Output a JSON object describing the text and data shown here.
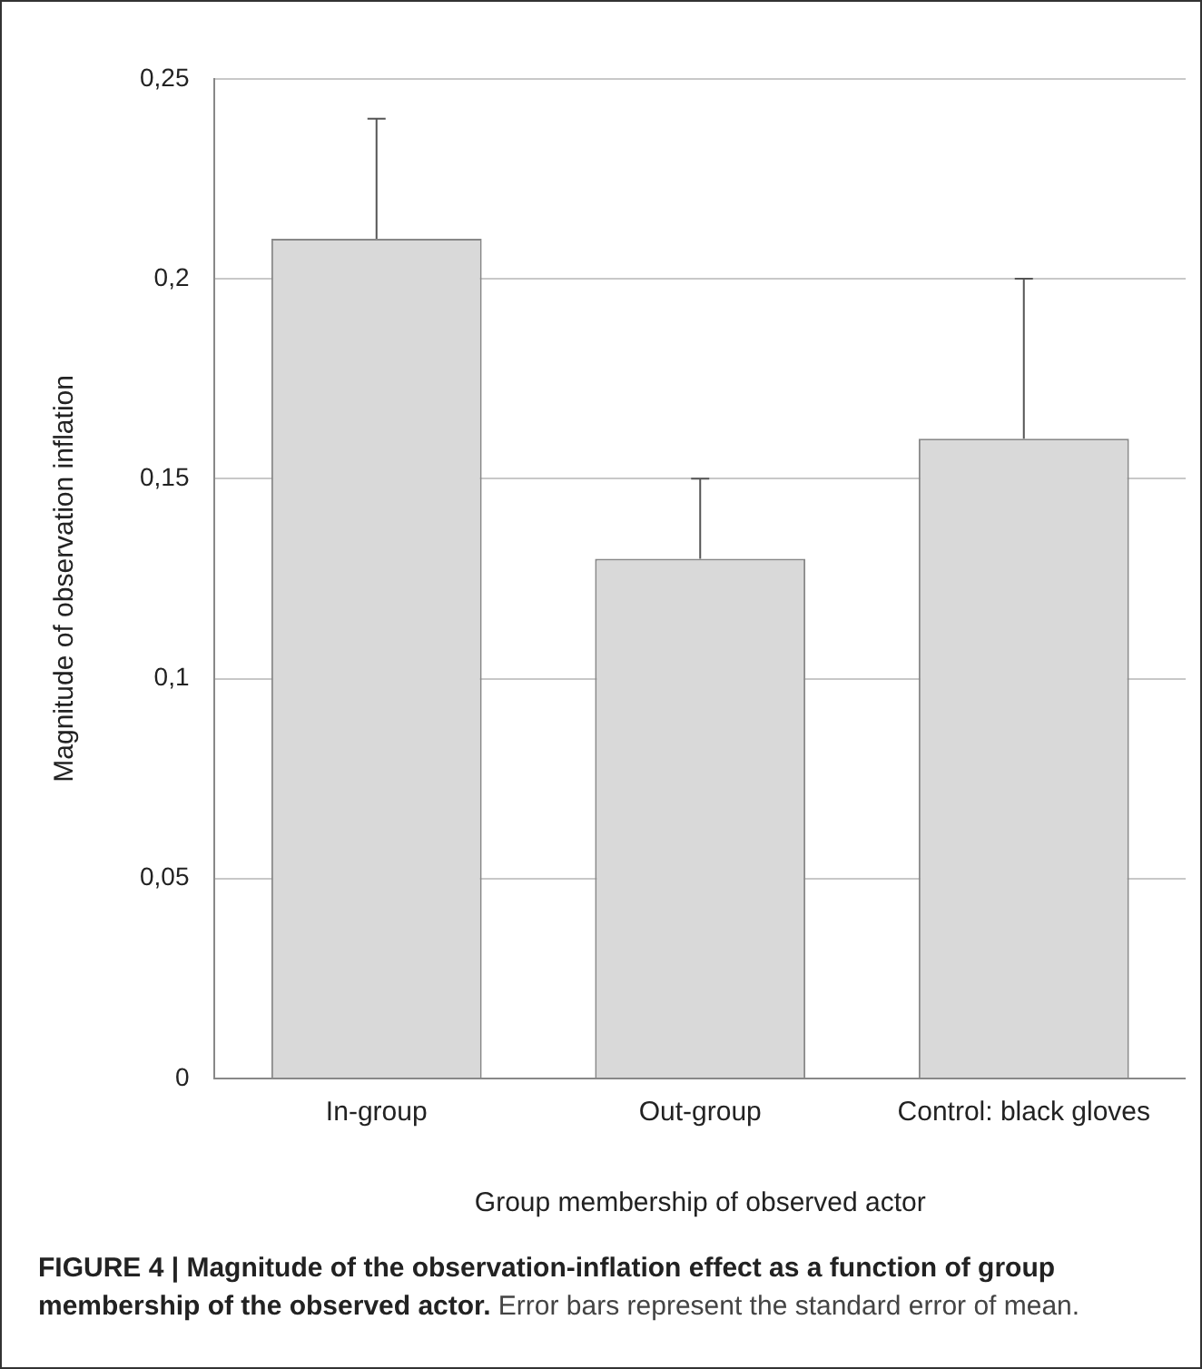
{
  "chart_data": {
    "type": "bar",
    "title": "FIGURE 4 | Magnitude of the observation-inflation effect as a function of group membership of the observed actor.",
    "annotations": [
      "Error bars represent the standard error of mean."
    ],
    "xlabel": "Group membership of observed actor",
    "ylabel": "Magnitude of observation inflation",
    "categories": [
      "In-group",
      "Out-group",
      "Control: black gloves"
    ],
    "values": [
      0.21,
      0.13,
      0.16
    ],
    "color": "#d9d9d9",
    "errors": [
      [
        0.21,
        0.24
      ],
      [
        0.13,
        0.15
      ],
      [
        0.16,
        0.2
      ]
    ],
    "ylim": [
      0,
      0.25
    ],
    "yticks": [
      0,
      {
        "value": 0.05,
        "label": "0,05"
      },
      {
        "value": 0.1,
        "label": "0,1"
      },
      {
        "value": 0.15,
        "label": "0,15"
      },
      {
        "value": 0.2,
        "label": "0,2"
      },
      {
        "value": 0.25,
        "label": "0,25"
      }
    ],
    "grid": "y",
    "legend": false
  }
}
